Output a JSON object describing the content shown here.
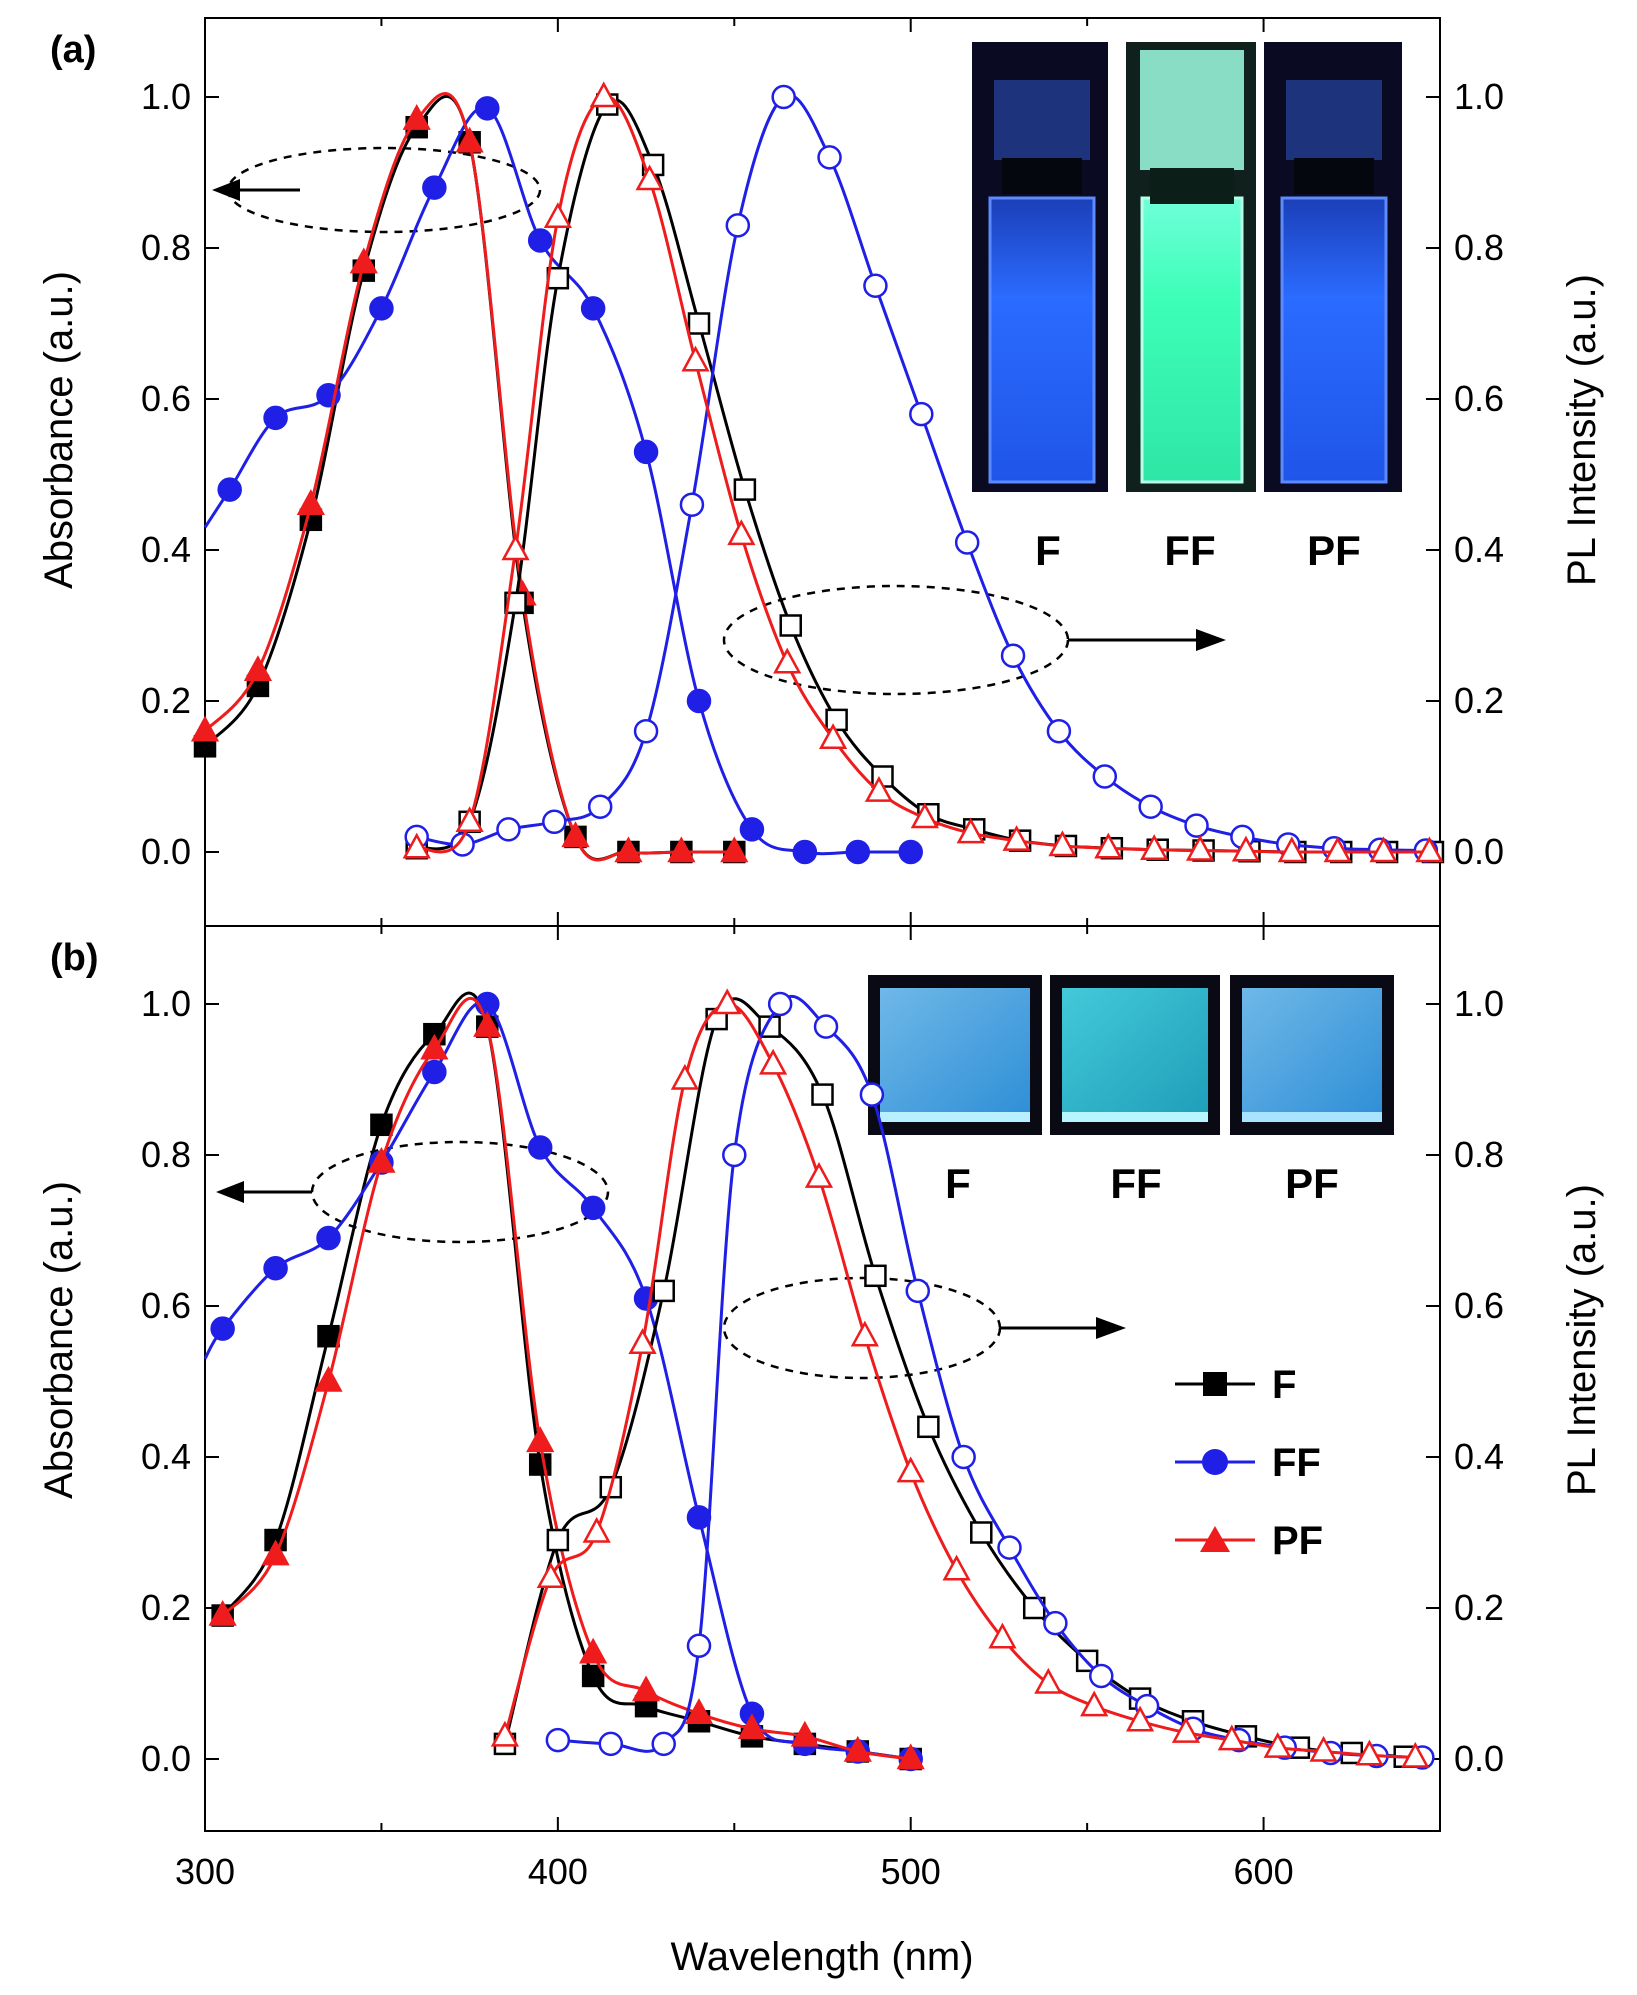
{
  "figure": {
    "xlabel": "Wavelength (nm)",
    "xlim": [
      300,
      650
    ],
    "xticks": [
      300,
      400,
      500,
      600
    ],
    "colors": {
      "F": "#000000",
      "FF": "#1f1fe6",
      "PF": "#ee1c1c"
    }
  },
  "chart_data": [
    {
      "type": "line",
      "panel": "(a)",
      "xlabel": "Wavelength (nm)",
      "ylabel_left": "Absorbance (a.u.)",
      "ylabel_right": "PL Intensity (a.u.)",
      "xlim": [
        300,
        650
      ],
      "ylim": [
        -0.1,
        1.1
      ],
      "yticks": [
        "0.0",
        "0.2",
        "0.4",
        "0.6",
        "0.8",
        "1.0"
      ],
      "inset_labels": [
        "F",
        "FF",
        "PF"
      ],
      "series": [
        {
          "name": "F",
          "kind": "absorbance",
          "color": "#000000",
          "marker": "square-filled",
          "x": [
            300,
            315,
            330,
            345,
            360,
            375,
            390,
            405,
            420,
            435,
            450
          ],
          "y": [
            0.14,
            0.22,
            0.44,
            0.77,
            0.96,
            0.94,
            0.33,
            0.02,
            0.0,
            0.0,
            0.0
          ]
        },
        {
          "name": "FF",
          "kind": "absorbance",
          "color": "#1f1fe6",
          "marker": "circle-filled",
          "x": [
            300,
            307,
            320,
            335,
            350,
            365,
            380,
            395,
            410,
            425,
            440,
            455,
            470,
            485,
            500
          ],
          "y": [
            0.43,
            0.48,
            0.575,
            0.605,
            0.72,
            0.88,
            0.985,
            0.81,
            0.72,
            0.53,
            0.2,
            0.03,
            0.0,
            0.0,
            0.0
          ],
          "marker_x": [
            307,
            320,
            335,
            350,
            365,
            380,
            395,
            410,
            425,
            440,
            455,
            470,
            485,
            500
          ]
        },
        {
          "name": "PF",
          "kind": "absorbance",
          "color": "#ee1c1c",
          "marker": "triangle-filled",
          "x": [
            300,
            315,
            330,
            345,
            360,
            375,
            390,
            405,
            420,
            435,
            450
          ],
          "y": [
            0.16,
            0.24,
            0.46,
            0.78,
            0.97,
            0.94,
            0.34,
            0.02,
            0.0,
            0.0,
            0.0
          ]
        },
        {
          "name": "F",
          "kind": "PL",
          "color": "#000000",
          "marker": "square-open",
          "x": [
            360,
            375,
            388,
            400,
            414,
            427,
            440,
            453,
            466,
            479,
            492,
            505,
            518,
            531,
            544,
            557,
            570,
            583,
            596,
            609,
            622,
            635,
            648
          ],
          "y": [
            0.005,
            0.04,
            0.33,
            0.76,
            0.99,
            0.91,
            0.7,
            0.48,
            0.3,
            0.175,
            0.1,
            0.05,
            0.03,
            0.015,
            0.008,
            0.005,
            0.003,
            0.002,
            0.001,
            0.0,
            0.0,
            0.0,
            0.0
          ]
        },
        {
          "name": "FF",
          "kind": "PL",
          "color": "#1f1fe6",
          "marker": "circle-open",
          "x": [
            360,
            373,
            386,
            399,
            412,
            425,
            438,
            451,
            464,
            477,
            490,
            503,
            516,
            529,
            542,
            555,
            568,
            581,
            594,
            607,
            620,
            633,
            646
          ],
          "y": [
            0.02,
            0.01,
            0.03,
            0.04,
            0.06,
            0.16,
            0.46,
            0.83,
            1.0,
            0.92,
            0.75,
            0.58,
            0.41,
            0.26,
            0.16,
            0.1,
            0.06,
            0.035,
            0.02,
            0.01,
            0.005,
            0.003,
            0.002
          ]
        },
        {
          "name": "PF",
          "kind": "PL",
          "color": "#ee1c1c",
          "marker": "triangle-open",
          "x": [
            360,
            375,
            388,
            400,
            413,
            426,
            439,
            452,
            465,
            478,
            491,
            504,
            517,
            530,
            543,
            556,
            569,
            582,
            595,
            608,
            621,
            634,
            647
          ],
          "y": [
            0.005,
            0.04,
            0.4,
            0.84,
            1.0,
            0.89,
            0.65,
            0.42,
            0.25,
            0.15,
            0.08,
            0.045,
            0.025,
            0.015,
            0.008,
            0.005,
            0.003,
            0.002,
            0.001,
            0.0,
            0.0,
            0.0,
            0.0
          ]
        }
      ]
    },
    {
      "type": "line",
      "panel": "(b)",
      "xlabel": "Wavelength (nm)",
      "ylabel_left": "Absorbance (a.u.)",
      "ylabel_right": "PL Intensity (a.u.)",
      "xlim": [
        300,
        650
      ],
      "ylim": [
        -0.1,
        1.1
      ],
      "yticks": [
        "0.0",
        "0.2",
        "0.4",
        "0.6",
        "0.8",
        "1.0"
      ],
      "inset_labels": [
        "F",
        "FF",
        "PF"
      ],
      "legend": [
        "F",
        "FF",
        "PF"
      ],
      "series": [
        {
          "name": "F",
          "kind": "absorbance",
          "color": "#000000",
          "marker": "square-filled",
          "x": [
            305,
            320,
            335,
            350,
            365,
            380,
            395,
            410,
            425,
            440,
            455,
            470,
            485,
            500
          ],
          "y": [
            0.19,
            0.29,
            0.56,
            0.84,
            0.96,
            0.97,
            0.39,
            0.11,
            0.07,
            0.05,
            0.03,
            0.02,
            0.01,
            0.0
          ]
        },
        {
          "name": "FF",
          "kind": "absorbance",
          "color": "#1f1fe6",
          "marker": "circle-filled",
          "x": [
            300,
            305,
            320,
            335,
            350,
            365,
            380,
            395,
            410,
            425,
            440,
            455,
            470,
            485,
            500
          ],
          "y": [
            0.53,
            0.57,
            0.65,
            0.69,
            0.79,
            0.91,
            1.0,
            0.81,
            0.73,
            0.61,
            0.32,
            0.06,
            0.02,
            0.01,
            0.0
          ],
          "marker_x": [
            305,
            320,
            335,
            350,
            365,
            380,
            395,
            410,
            425,
            440,
            455,
            470,
            485,
            500
          ]
        },
        {
          "name": "PF",
          "kind": "absorbance",
          "color": "#ee1c1c",
          "marker": "triangle-filled",
          "x": [
            305,
            320,
            335,
            350,
            365,
            380,
            395,
            410,
            425,
            440,
            455,
            470,
            485,
            500
          ],
          "y": [
            0.19,
            0.27,
            0.5,
            0.79,
            0.94,
            0.97,
            0.42,
            0.14,
            0.09,
            0.06,
            0.04,
            0.03,
            0.01,
            0.0
          ]
        },
        {
          "name": "F",
          "kind": "PL",
          "color": "#000000",
          "marker": "square-open",
          "x": [
            385,
            400,
            415,
            430,
            445,
            460,
            475,
            490,
            505,
            520,
            535,
            550,
            565,
            580,
            595,
            610,
            625,
            640
          ],
          "y": [
            0.02,
            0.29,
            0.36,
            0.62,
            0.98,
            0.97,
            0.88,
            0.64,
            0.44,
            0.3,
            0.2,
            0.13,
            0.08,
            0.05,
            0.03,
            0.015,
            0.008,
            0.003
          ]
        },
        {
          "name": "FF",
          "kind": "PL",
          "color": "#1f1fe6",
          "marker": "circle-open",
          "x": [
            400,
            415,
            430,
            440,
            450,
            463,
            476,
            489,
            502,
            515,
            528,
            541,
            554,
            567,
            580,
            593,
            606,
            619,
            632,
            645
          ],
          "y": [
            0.025,
            0.02,
            0.02,
            0.15,
            0.8,
            1.0,
            0.97,
            0.88,
            0.62,
            0.4,
            0.28,
            0.18,
            0.11,
            0.07,
            0.04,
            0.025,
            0.015,
            0.008,
            0.004,
            0.002
          ]
        },
        {
          "name": "PF",
          "kind": "PL",
          "color": "#ee1c1c",
          "marker": "triangle-open",
          "x": [
            385,
            398,
            411,
            424,
            436,
            448,
            461,
            474,
            487,
            500,
            513,
            526,
            539,
            552,
            565,
            578,
            591,
            604,
            617,
            630,
            643
          ],
          "y": [
            0.03,
            0.24,
            0.3,
            0.55,
            0.9,
            1.0,
            0.92,
            0.77,
            0.56,
            0.38,
            0.25,
            0.16,
            0.1,
            0.07,
            0.05,
            0.035,
            0.025,
            0.015,
            0.01,
            0.005,
            0.002
          ]
        }
      ]
    }
  ]
}
